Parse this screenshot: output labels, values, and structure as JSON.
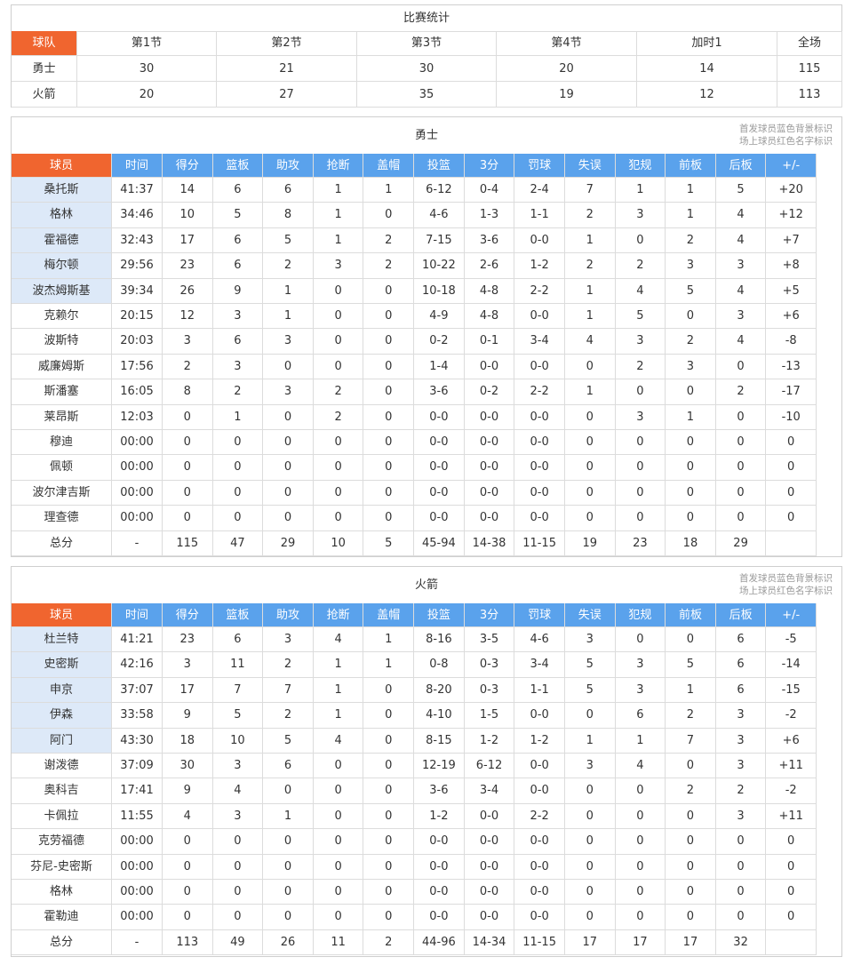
{
  "score": {
    "title": "比赛统计",
    "header": [
      "球队",
      "第1节",
      "第2节",
      "第3节",
      "第4节",
      "加时1",
      "全场"
    ],
    "rows": [
      [
        "勇士",
        "30",
        "21",
        "30",
        "20",
        "14",
        "115"
      ],
      [
        "火箭",
        "20",
        "27",
        "35",
        "19",
        "12",
        "113"
      ]
    ]
  },
  "player_header": [
    "球员",
    "时间",
    "得分",
    "篮板",
    "助攻",
    "抢断",
    "盖帽",
    "投篮",
    "3分",
    "罚球",
    "失误",
    "犯规",
    "前板",
    "后板",
    "+/-"
  ],
  "teams": [
    {
      "name": "勇士",
      "notes": [
        "首发球员蓝色背景标识",
        "场上球员红色名字标识"
      ],
      "starters": 5,
      "rows": [
        [
          "桑托斯",
          "41:37",
          "14",
          "6",
          "6",
          "1",
          "1",
          "6-12",
          "0-4",
          "2-4",
          "7",
          "1",
          "1",
          "5",
          "+20"
        ],
        [
          "格林",
          "34:46",
          "10",
          "5",
          "8",
          "1",
          "0",
          "4-6",
          "1-3",
          "1-1",
          "2",
          "3",
          "1",
          "4",
          "+12"
        ],
        [
          "霍福德",
          "32:43",
          "17",
          "6",
          "5",
          "1",
          "2",
          "7-15",
          "3-6",
          "0-0",
          "1",
          "0",
          "2",
          "4",
          "+7"
        ],
        [
          "梅尔顿",
          "29:56",
          "23",
          "6",
          "2",
          "3",
          "2",
          "10-22",
          "2-6",
          "1-2",
          "2",
          "2",
          "3",
          "3",
          "+8"
        ],
        [
          "波杰姆斯基",
          "39:34",
          "26",
          "9",
          "1",
          "0",
          "0",
          "10-18",
          "4-8",
          "2-2",
          "1",
          "4",
          "5",
          "4",
          "+5"
        ],
        [
          "克赖尔",
          "20:15",
          "12",
          "3",
          "1",
          "0",
          "0",
          "4-9",
          "4-8",
          "0-0",
          "1",
          "5",
          "0",
          "3",
          "+6"
        ],
        [
          "波斯特",
          "20:03",
          "3",
          "6",
          "3",
          "0",
          "0",
          "0-2",
          "0-1",
          "3-4",
          "4",
          "3",
          "2",
          "4",
          "-8"
        ],
        [
          "威廉姆斯",
          "17:56",
          "2",
          "3",
          "0",
          "0",
          "0",
          "1-4",
          "0-0",
          "0-0",
          "0",
          "2",
          "3",
          "0",
          "-13"
        ],
        [
          "斯潘塞",
          "16:05",
          "8",
          "2",
          "3",
          "2",
          "0",
          "3-6",
          "0-2",
          "2-2",
          "1",
          "0",
          "0",
          "2",
          "-17"
        ],
        [
          "莱昂斯",
          "12:03",
          "0",
          "1",
          "0",
          "2",
          "0",
          "0-0",
          "0-0",
          "0-0",
          "0",
          "3",
          "1",
          "0",
          "-10"
        ],
        [
          "穆迪",
          "00:00",
          "0",
          "0",
          "0",
          "0",
          "0",
          "0-0",
          "0-0",
          "0-0",
          "0",
          "0",
          "0",
          "0",
          "0"
        ],
        [
          "佩顿",
          "00:00",
          "0",
          "0",
          "0",
          "0",
          "0",
          "0-0",
          "0-0",
          "0-0",
          "0",
          "0",
          "0",
          "0",
          "0"
        ],
        [
          "波尔津吉斯",
          "00:00",
          "0",
          "0",
          "0",
          "0",
          "0",
          "0-0",
          "0-0",
          "0-0",
          "0",
          "0",
          "0",
          "0",
          "0"
        ],
        [
          "理查德",
          "00:00",
          "0",
          "0",
          "0",
          "0",
          "0",
          "0-0",
          "0-0",
          "0-0",
          "0",
          "0",
          "0",
          "0",
          "0"
        ]
      ],
      "total": [
        "总分",
        "-",
        "115",
        "47",
        "29",
        "10",
        "5",
        "45-94",
        "14-38",
        "11-15",
        "19",
        "23",
        "18",
        "29"
      ]
    },
    {
      "name": "火箭",
      "notes": [
        "首发球员蓝色背景标识",
        "场上球员红色名字标识"
      ],
      "starters": 5,
      "rows": [
        [
          "杜兰特",
          "41:21",
          "23",
          "6",
          "3",
          "4",
          "1",
          "8-16",
          "3-5",
          "4-6",
          "3",
          "0",
          "0",
          "6",
          "-5"
        ],
        [
          "史密斯",
          "42:16",
          "3",
          "11",
          "2",
          "1",
          "1",
          "0-8",
          "0-3",
          "3-4",
          "5",
          "3",
          "5",
          "6",
          "-14"
        ],
        [
          "申京",
          "37:07",
          "17",
          "7",
          "7",
          "1",
          "0",
          "8-20",
          "0-3",
          "1-1",
          "5",
          "3",
          "1",
          "6",
          "-15"
        ],
        [
          "伊森",
          "33:58",
          "9",
          "5",
          "2",
          "1",
          "0",
          "4-10",
          "1-5",
          "0-0",
          "0",
          "6",
          "2",
          "3",
          "-2"
        ],
        [
          "阿门",
          "43:30",
          "18",
          "10",
          "5",
          "4",
          "0",
          "8-15",
          "1-2",
          "1-2",
          "1",
          "1",
          "7",
          "3",
          "+6"
        ],
        [
          "谢泼德",
          "37:09",
          "30",
          "3",
          "6",
          "0",
          "0",
          "12-19",
          "6-12",
          "0-0",
          "3",
          "4",
          "0",
          "3",
          "+11"
        ],
        [
          "奥科吉",
          "17:41",
          "9",
          "4",
          "0",
          "0",
          "0",
          "3-6",
          "3-4",
          "0-0",
          "0",
          "0",
          "2",
          "2",
          "-2"
        ],
        [
          "卡佩拉",
          "11:55",
          "4",
          "3",
          "1",
          "0",
          "0",
          "1-2",
          "0-0",
          "2-2",
          "0",
          "0",
          "0",
          "3",
          "+11"
        ],
        [
          "克劳福德",
          "00:00",
          "0",
          "0",
          "0",
          "0",
          "0",
          "0-0",
          "0-0",
          "0-0",
          "0",
          "0",
          "0",
          "0",
          "0"
        ],
        [
          "芬尼-史密斯",
          "00:00",
          "0",
          "0",
          "0",
          "0",
          "0",
          "0-0",
          "0-0",
          "0-0",
          "0",
          "0",
          "0",
          "0",
          "0"
        ],
        [
          "格林",
          "00:00",
          "0",
          "0",
          "0",
          "0",
          "0",
          "0-0",
          "0-0",
          "0-0",
          "0",
          "0",
          "0",
          "0",
          "0"
        ],
        [
          "霍勒迪",
          "00:00",
          "0",
          "0",
          "0",
          "0",
          "0",
          "0-0",
          "0-0",
          "0-0",
          "0",
          "0",
          "0",
          "0",
          "0"
        ]
      ],
      "total": [
        "总分",
        "-",
        "113",
        "49",
        "26",
        "11",
        "2",
        "44-96",
        "14-34",
        "11-15",
        "17",
        "17",
        "17",
        "32"
      ]
    }
  ]
}
